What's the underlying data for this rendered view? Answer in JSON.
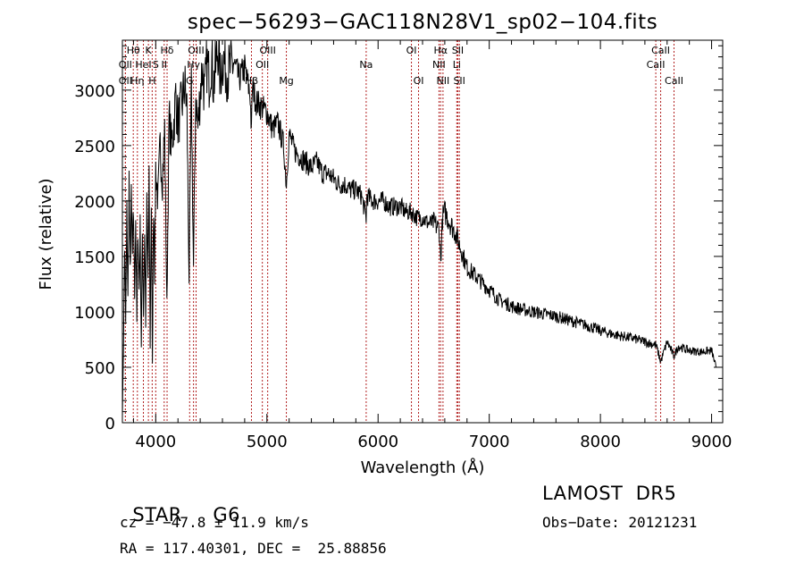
{
  "chart_data": {
    "type": "line",
    "title": "spec−56293−GAC118N28V1_sp02−104.fits",
    "xlabel": "Wavelength (Å)",
    "ylabel": "Flux (relative)",
    "xlim": [
      3700,
      9100
    ],
    "ylim": [
      0,
      3450
    ],
    "xticks": [
      4000,
      5000,
      6000,
      7000,
      8000,
      9000
    ],
    "yticks": [
      0,
      500,
      1000,
      1500,
      2000,
      2500,
      3000
    ],
    "line_color": "#000000",
    "marker_color": "#b22222",
    "series": [
      {
        "x": [
          3700,
          3710,
          3720,
          3730,
          3740,
          3750,
          3760,
          3770,
          3780,
          3790,
          3800,
          3810,
          3820,
          3830,
          3840,
          3850,
          3860,
          3870,
          3880,
          3890,
          3900,
          3910,
          3920,
          3930,
          3940,
          3950,
          3960,
          3970,
          3980,
          3990,
          4000,
          4020,
          4040,
          4060,
          4080,
          4100,
          4120,
          4140,
          4160,
          4180,
          4200,
          4220,
          4240,
          4260,
          4280,
          4300,
          4320,
          4340,
          4360,
          4380,
          4400,
          4420,
          4440,
          4460,
          4480,
          4500,
          4520,
          4540,
          4560,
          4580,
          4600,
          4650,
          4700,
          4750,
          4800,
          4850,
          4861,
          4870,
          4900,
          4950,
          5000,
          5050,
          5100,
          5150,
          5175,
          5200,
          5250,
          5300,
          5350,
          5400,
          5450,
          5500,
          5550,
          5600,
          5650,
          5700,
          5750,
          5800,
          5850,
          5893,
          5900,
          5950,
          6000,
          6050,
          6100,
          6150,
          6200,
          6250,
          6300,
          6350,
          6400,
          6450,
          6500,
          6550,
          6563,
          6580,
          6600,
          6650,
          6700,
          6750,
          6800,
          6850,
          6900,
          6950,
          7000,
          7050,
          7100,
          7150,
          7200,
          7300,
          7400,
          7500,
          7600,
          7700,
          7800,
          7900,
          8000,
          8100,
          8200,
          8300,
          8400,
          8500,
          8542,
          8600,
          8662,
          8700,
          8800,
          8900,
          9000,
          9040
        ],
        "y": [
          50,
          700,
          1600,
          900,
          1900,
          1100,
          2200,
          1350,
          2000,
          1500,
          1900,
          1150,
          1850,
          900,
          1800,
          1200,
          1750,
          700,
          1700,
          1000,
          1750,
          900,
          1950,
          1300,
          2150,
          700,
          2000,
          500,
          2000,
          1350,
          2300,
          2000,
          2500,
          2200,
          2650,
          1050,
          2750,
          2500,
          2650,
          2950,
          2700,
          2800,
          2900,
          3050,
          2850,
          1300,
          3000,
          1400,
          2950,
          2650,
          3000,
          3200,
          2950,
          3250,
          3100,
          3300,
          3050,
          3200,
          3400,
          3100,
          3300,
          3150,
          3250,
          3100,
          3200,
          2950,
          2600,
          3050,
          2900,
          2850,
          2800,
          2650,
          2700,
          2500,
          2150,
          2600,
          2450,
          2400,
          2350,
          2300,
          2350,
          2250,
          2250,
          2200,
          2150,
          2150,
          2100,
          2100,
          2050,
          1850,
          2050,
          2000,
          2000,
          2000,
          1950,
          1950,
          1950,
          1900,
          1900,
          1850,
          1850,
          1800,
          1800,
          1750,
          1450,
          1850,
          1900,
          1800,
          1700,
          1550,
          1400,
          1350,
          1300,
          1250,
          1200,
          1150,
          1100,
          1080,
          1050,
          1020,
          1000,
          980,
          960,
          930,
          900,
          870,
          830,
          800,
          780,
          760,
          730,
          700,
          550,
          730,
          600,
          690,
          650,
          640,
          650,
          500
        ],
        "max_flux_shown": 3400
      }
    ],
    "lines": [
      {
        "label": "Hθ",
        "wl": 3798,
        "row": 0
      },
      {
        "label": "OII",
        "wl": 3727,
        "row": 1
      },
      {
        "label": "OII",
        "wl": 3727,
        "row": 2
      },
      {
        "label": "K",
        "wl": 3934,
        "row": 0
      },
      {
        "label": "HeI",
        "wl": 3889,
        "row": 1
      },
      {
        "label": "Hη",
        "wl": 3835,
        "row": 2
      },
      {
        "label": "S",
        "wl": 4000,
        "row": 1
      },
      {
        "label": "H",
        "wl": 3968,
        "row": 2
      },
      {
        "label": "Hδ",
        "wl": 4102,
        "row": 0
      },
      {
        "label": "II",
        "wl": 4076,
        "row": 1
      },
      {
        "label": "OIII",
        "wl": 4363,
        "row": 0
      },
      {
        "label": "Hγ",
        "wl": 4340,
        "row": 1
      },
      {
        "label": "G",
        "wl": 4305,
        "row": 2
      },
      {
        "label": "OIII",
        "wl": 5007,
        "row": 0
      },
      {
        "label": "OII",
        "wl": 4959,
        "row": 1
      },
      {
        "label": "Hβ",
        "wl": 4861,
        "row": 2
      },
      {
        "label": "Mg",
        "wl": 5175,
        "row": 2
      },
      {
        "label": "Na",
        "wl": 5893,
        "row": 1
      },
      {
        "label": "OI",
        "wl": 6300,
        "row": 0
      },
      {
        "label": "OI",
        "wl": 6364,
        "row": 2
      },
      {
        "label": "Hα",
        "wl": 6563,
        "row": 0
      },
      {
        "label": "SII",
        "wl": 6717,
        "row": 0
      },
      {
        "label": "NII",
        "wl": 6548,
        "row": 1
      },
      {
        "label": "Li",
        "wl": 6708,
        "row": 1
      },
      {
        "label": "NII",
        "wl": 6584,
        "row": 2
      },
      {
        "label": "SII",
        "wl": 6731,
        "row": 2
      },
      {
        "label": "CaII",
        "wl": 8542,
        "row": 0
      },
      {
        "label": "CaII",
        "wl": 8498,
        "row": 1
      },
      {
        "label": "CaII",
        "wl": 8662,
        "row": 2
      }
    ]
  },
  "info": {
    "class_label": "STAR",
    "subclass": "G6",
    "survey": "LAMOST  DR5",
    "cz": "cz = −47.8 ± 11.9 km/s",
    "obs_date": "Obs−Date: 20121231",
    "coords": "RA = 117.40301, DEC =  25.88856"
  }
}
